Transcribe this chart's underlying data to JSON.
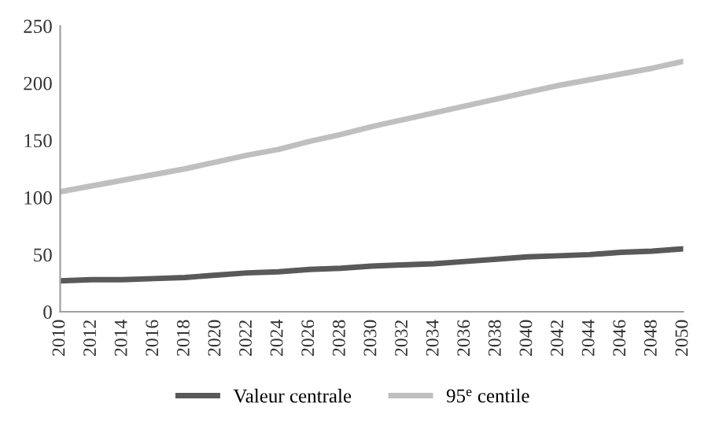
{
  "chart_data": {
    "type": "line",
    "x": [
      2010,
      2012,
      2014,
      2016,
      2018,
      2020,
      2022,
      2024,
      2026,
      2028,
      2030,
      2032,
      2034,
      2036,
      2038,
      2040,
      2042,
      2044,
      2046,
      2048,
      2050
    ],
    "series": [
      {
        "name": "Valeur centrale",
        "color": "#595959",
        "values": [
          27,
          28,
          28,
          29,
          30,
          32,
          34,
          35,
          37,
          38,
          40,
          41,
          42,
          44,
          46,
          48,
          49,
          50,
          52,
          53,
          55
        ]
      },
      {
        "name": "95$^{e}$ centile",
        "color": "#bfbfbf",
        "values": [
          105,
          110,
          115,
          120,
          125,
          131,
          137,
          142,
          149,
          155,
          162,
          168,
          174,
          180,
          186,
          192,
          198,
          203,
          208,
          213,
          219
        ]
      }
    ],
    "xlim": [
      2010,
      2050
    ],
    "xticks": [
      2010,
      2012,
      2014,
      2016,
      2018,
      2020,
      2022,
      2024,
      2026,
      2028,
      2030,
      2032,
      2034,
      2036,
      2038,
      2040,
      2042,
      2044,
      2046,
      2048,
      2050
    ],
    "ylim": [
      0,
      250
    ],
    "yticks": [
      0,
      50,
      100,
      150,
      200,
      250
    ],
    "grid": false,
    "legend": "bottom",
    "marker": "none",
    "line_style": "solid"
  }
}
